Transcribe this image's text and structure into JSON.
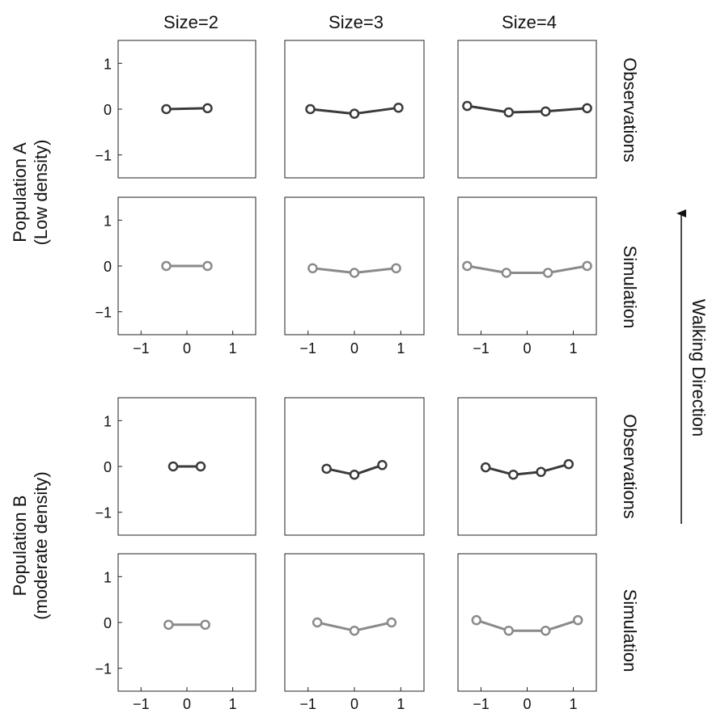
{
  "colors": {
    "observations": "#3a3a3a",
    "simulation": "#8a8a8a",
    "frame": "#222222"
  },
  "column_titles": [
    "Size=2",
    "Size=3",
    "Size=4"
  ],
  "row_labels": [
    "Observations",
    "Simulation",
    "Observations",
    "Simulation"
  ],
  "population_labels": [
    {
      "line1": "Population A",
      "line2": "(Low density)"
    },
    {
      "line1": "Population B",
      "line2": "(moderate density)"
    }
  ],
  "walking_direction_label": "Walking Direction",
  "chart_data": [
    {
      "type": "line",
      "row": "Observations",
      "population": "Population A",
      "size": "Size=2",
      "xlim": [
        -1.5,
        1.5
      ],
      "ylim": [
        -1.5,
        1.5
      ],
      "x": [
        -0.45,
        0.45
      ],
      "y": [
        0.0,
        0.02
      ]
    },
    {
      "type": "line",
      "row": "Observations",
      "population": "Population A",
      "size": "Size=3",
      "xlim": [
        -1.5,
        1.5
      ],
      "ylim": [
        -1.5,
        1.5
      ],
      "x": [
        -0.95,
        0.0,
        0.95
      ],
      "y": [
        0.0,
        -0.1,
        0.03
      ]
    },
    {
      "type": "line",
      "row": "Observations",
      "population": "Population A",
      "size": "Size=4",
      "xlim": [
        -1.5,
        1.5
      ],
      "ylim": [
        -1.5,
        1.5
      ],
      "x": [
        -1.3,
        -0.4,
        0.4,
        1.3
      ],
      "y": [
        0.07,
        -0.07,
        -0.05,
        0.02
      ]
    },
    {
      "type": "line",
      "row": "Simulation",
      "population": "Population A",
      "size": "Size=2",
      "xlim": [
        -1.5,
        1.5
      ],
      "ylim": [
        -1.5,
        1.5
      ],
      "x": [
        -0.45,
        0.45
      ],
      "y": [
        0.0,
        0.0
      ]
    },
    {
      "type": "line",
      "row": "Simulation",
      "population": "Population A",
      "size": "Size=3",
      "xlim": [
        -1.5,
        1.5
      ],
      "ylim": [
        -1.5,
        1.5
      ],
      "x": [
        -0.9,
        0.0,
        0.9
      ],
      "y": [
        -0.05,
        -0.15,
        -0.05
      ]
    },
    {
      "type": "line",
      "row": "Simulation",
      "population": "Population A",
      "size": "Size=4",
      "xlim": [
        -1.5,
        1.5
      ],
      "ylim": [
        -1.5,
        1.5
      ],
      "x": [
        -1.3,
        -0.45,
        0.45,
        1.3
      ],
      "y": [
        0.0,
        -0.15,
        -0.15,
        0.0
      ]
    },
    {
      "type": "line",
      "row": "Observations",
      "population": "Population B",
      "size": "Size=2",
      "xlim": [
        -1.5,
        1.5
      ],
      "ylim": [
        -1.5,
        1.5
      ],
      "x": [
        -0.3,
        0.3
      ],
      "y": [
        0.0,
        0.0
      ]
    },
    {
      "type": "line",
      "row": "Observations",
      "population": "Population B",
      "size": "Size=3",
      "xlim": [
        -1.5,
        1.5
      ],
      "ylim": [
        -1.5,
        1.5
      ],
      "x": [
        -0.6,
        0.0,
        0.6
      ],
      "y": [
        -0.05,
        -0.18,
        0.03
      ]
    },
    {
      "type": "line",
      "row": "Observations",
      "population": "Population B",
      "size": "Size=4",
      "xlim": [
        -1.5,
        1.5
      ],
      "ylim": [
        -1.5,
        1.5
      ],
      "x": [
        -0.9,
        -0.3,
        0.3,
        0.9
      ],
      "y": [
        -0.02,
        -0.18,
        -0.12,
        0.05
      ]
    },
    {
      "type": "line",
      "row": "Simulation",
      "population": "Population B",
      "size": "Size=2",
      "xlim": [
        -1.5,
        1.5
      ],
      "ylim": [
        -1.5,
        1.5
      ],
      "x": [
        -0.4,
        0.4
      ],
      "y": [
        -0.05,
        -0.05
      ]
    },
    {
      "type": "line",
      "row": "Simulation",
      "population": "Population B",
      "size": "Size=3",
      "xlim": [
        -1.5,
        1.5
      ],
      "ylim": [
        -1.5,
        1.5
      ],
      "x": [
        -0.8,
        0.0,
        0.8
      ],
      "y": [
        0.0,
        -0.18,
        0.0
      ]
    },
    {
      "type": "line",
      "row": "Simulation",
      "population": "Population B",
      "size": "Size=4",
      "xlim": [
        -1.5,
        1.5
      ],
      "ylim": [
        -1.5,
        1.5
      ],
      "x": [
        -1.1,
        -0.4,
        0.4,
        1.1
      ],
      "y": [
        0.05,
        -0.18,
        -0.18,
        0.05
      ]
    }
  ],
  "axis_ticks": {
    "y": [
      1,
      0,
      -1
    ],
    "x": [
      -1,
      0,
      1
    ]
  }
}
